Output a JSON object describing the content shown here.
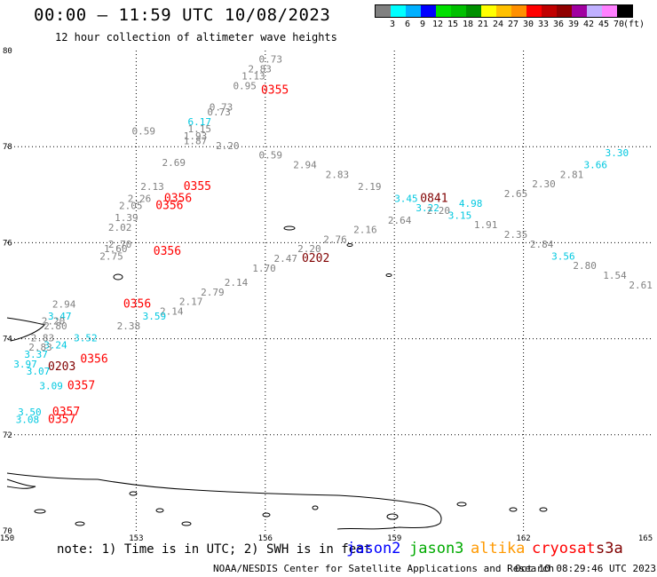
{
  "header": {
    "title": "00:00 – 11:59 UTC 10/08/2023",
    "subtitle": "12 hour collection of altimeter wave heights"
  },
  "legend": {
    "colors": [
      "#808080",
      "#00ffff",
      "#00b0ff",
      "#0000ff",
      "#00e000",
      "#00c000",
      "#009000",
      "#ffff00",
      "#ffc000",
      "#ff9000",
      "#ff0000",
      "#c00000",
      "#900000",
      "#a000a0",
      "#c0b0ff",
      "#ff80ff",
      "#000000"
    ],
    "labels": [
      "3",
      "6",
      "9",
      "12",
      "15",
      "18",
      "21",
      "24",
      "27",
      "30",
      "33",
      "36",
      "39",
      "42",
      "45",
      "70",
      "(ft)"
    ]
  },
  "map": {
    "x_ticks": [
      "150",
      "153",
      "156",
      "159",
      "162",
      "165"
    ],
    "y_ticks": [
      "80",
      "78",
      "76",
      "74",
      "72",
      "70"
    ],
    "obs": [
      {
        "t": "0.73",
        "lon": 155.85,
        "lat": 79.75,
        "c": "#808080"
      },
      {
        "t": "2.83",
        "lon": 155.6,
        "lat": 79.55,
        "c": "#808080"
      },
      {
        "t": "1.13",
        "lon": 155.45,
        "lat": 79.4,
        "c": "#808080"
      },
      {
        "t": "0.95",
        "lon": 155.25,
        "lat": 79.2,
        "c": "#808080"
      },
      {
        "t": "0.73",
        "lon": 154.7,
        "lat": 78.75,
        "c": "#808080"
      },
      {
        "t": "0.73",
        "lon": 154.65,
        "lat": 78.65,
        "c": "#808080"
      },
      {
        "t": "6.17",
        "lon": 154.2,
        "lat": 78.45,
        "c": "#00c8e0"
      },
      {
        "t": "1.15",
        "lon": 154.2,
        "lat": 78.3,
        "c": "#808080"
      },
      {
        "t": "0.59",
        "lon": 152.9,
        "lat": 78.25,
        "c": "#808080"
      },
      {
        "t": "1.93",
        "lon": 154.1,
        "lat": 78.15,
        "c": "#808080"
      },
      {
        "t": "1.87",
        "lon": 154.1,
        "lat": 78.05,
        "c": "#808080"
      },
      {
        "t": "2.20",
        "lon": 154.85,
        "lat": 77.95,
        "c": "#808080"
      },
      {
        "t": "0.59",
        "lon": 155.85,
        "lat": 77.75,
        "c": "#808080"
      },
      {
        "t": "2.69",
        "lon": 153.6,
        "lat": 77.6,
        "c": "#808080"
      },
      {
        "t": "2.94",
        "lon": 156.65,
        "lat": 77.55,
        "c": "#808080"
      },
      {
        "t": "2.83",
        "lon": 157.4,
        "lat": 77.35,
        "c": "#808080"
      },
      {
        "t": "2.13",
        "lon": 153.1,
        "lat": 77.1,
        "c": "#808080"
      },
      {
        "t": "2.19",
        "lon": 158.15,
        "lat": 77.1,
        "c": "#808080"
      },
      {
        "t": "3.30",
        "lon": 163.9,
        "lat": 77.8,
        "c": "#00c8e0"
      },
      {
        "t": "3.66",
        "lon": 163.4,
        "lat": 77.55,
        "c": "#00c8e0"
      },
      {
        "t": "2.81",
        "lon": 162.85,
        "lat": 77.35,
        "c": "#808080"
      },
      {
        "t": "2.30",
        "lon": 162.2,
        "lat": 77.15,
        "c": "#808080"
      },
      {
        "t": "2.65",
        "lon": 161.55,
        "lat": 76.95,
        "c": "#808080"
      },
      {
        "t": "3.45",
        "lon": 159.0,
        "lat": 76.85,
        "c": "#00c8e0"
      },
      {
        "t": "0841",
        "lon": 159.6,
        "lat": 76.85,
        "c": "#800000"
      },
      {
        "t": "4.98",
        "lon": 160.5,
        "lat": 76.75,
        "c": "#00c8e0"
      },
      {
        "t": "3.22",
        "lon": 159.5,
        "lat": 76.65,
        "c": "#00c8e0"
      },
      {
        "t": "2.20",
        "lon": 159.75,
        "lat": 76.6,
        "c": "#808080"
      },
      {
        "t": "3.15",
        "lon": 160.25,
        "lat": 76.5,
        "c": "#00c8e0"
      },
      {
        "t": "2.64",
        "lon": 158.85,
        "lat": 76.4,
        "c": "#808080"
      },
      {
        "t": "1.91",
        "lon": 160.85,
        "lat": 76.3,
        "c": "#808080"
      },
      {
        "t": "2.16",
        "lon": 158.05,
        "lat": 76.2,
        "c": "#808080"
      },
      {
        "t": "2.35",
        "lon": 161.55,
        "lat": 76.1,
        "c": "#808080"
      },
      {
        "t": "2.76",
        "lon": 157.35,
        "lat": 76.0,
        "c": "#808080"
      },
      {
        "t": "2.84",
        "lon": 162.15,
        "lat": 75.9,
        "c": "#808080"
      },
      {
        "t": "3.56",
        "lon": 162.65,
        "lat": 75.65,
        "c": "#00c8e0"
      },
      {
        "t": "2.20",
        "lon": 156.75,
        "lat": 75.8,
        "c": "#808080"
      },
      {
        "t": "0202",
        "lon": 156.85,
        "lat": 75.6,
        "c": "#800000"
      },
      {
        "t": "2.47",
        "lon": 156.2,
        "lat": 75.6,
        "c": "#808080"
      },
      {
        "t": "2.80",
        "lon": 163.15,
        "lat": 75.45,
        "c": "#808080"
      },
      {
        "t": "1.70",
        "lon": 155.7,
        "lat": 75.4,
        "c": "#808080"
      },
      {
        "t": "1.54",
        "lon": 163.85,
        "lat": 75.25,
        "c": "#808080"
      },
      {
        "t": "2.61",
        "lon": 164.45,
        "lat": 75.05,
        "c": "#808080"
      },
      {
        "t": "2.14",
        "lon": 155.05,
        "lat": 75.1,
        "c": "#808080"
      },
      {
        "t": "2.79",
        "lon": 154.5,
        "lat": 74.9,
        "c": "#808080"
      },
      {
        "t": "2.17",
        "lon": 154.0,
        "lat": 74.7,
        "c": "#808080"
      },
      {
        "t": "2.14",
        "lon": 153.55,
        "lat": 74.5,
        "c": "#808080"
      },
      {
        "t": "0355",
        "lon": 155.9,
        "lat": 79.1,
        "c": "#ff0000"
      },
      {
        "t": "0355",
        "lon": 154.1,
        "lat": 77.1,
        "c": "#ff0000"
      },
      {
        "t": "2.26",
        "lon": 152.8,
        "lat": 76.85,
        "c": "#808080"
      },
      {
        "t": "0356",
        "lon": 153.65,
        "lat": 76.85,
        "c": "#ff0000"
      },
      {
        "t": "2.05",
        "lon": 152.6,
        "lat": 76.7,
        "c": "#808080"
      },
      {
        "t": "0356",
        "lon": 153.45,
        "lat": 76.7,
        "c": "#ff0000"
      },
      {
        "t": "1.39",
        "lon": 152.5,
        "lat": 76.45,
        "c": "#808080"
      },
      {
        "t": "2.02",
        "lon": 152.35,
        "lat": 76.25,
        "c": "#808080"
      },
      {
        "t": "2.70",
        "lon": 152.35,
        "lat": 75.9,
        "c": "#808080"
      },
      {
        "t": "1.60",
        "lon": 152.25,
        "lat": 75.8,
        "c": "#808080"
      },
      {
        "t": "2.75",
        "lon": 152.15,
        "lat": 75.65,
        "c": "#808080"
      },
      {
        "t": "0356",
        "lon": 153.4,
        "lat": 75.75,
        "c": "#ff0000"
      },
      {
        "t": "2.94",
        "lon": 151.05,
        "lat": 74.65,
        "c": "#808080"
      },
      {
        "t": "0356",
        "lon": 152.7,
        "lat": 74.65,
        "c": "#ff0000"
      },
      {
        "t": "3.47",
        "lon": 150.95,
        "lat": 74.4,
        "c": "#00c8e0"
      },
      {
        "t": "2.20",
        "lon": 150.8,
        "lat": 74.3,
        "c": "#808080"
      },
      {
        "t": "2.80",
        "lon": 150.85,
        "lat": 74.2,
        "c": "#808080"
      },
      {
        "t": "3.59",
        "lon": 153.15,
        "lat": 74.4,
        "c": "#00c8e0"
      },
      {
        "t": "2.38",
        "lon": 152.55,
        "lat": 74.2,
        "c": "#808080"
      },
      {
        "t": "2.83",
        "lon": 150.55,
        "lat": 73.95,
        "c": "#808080"
      },
      {
        "t": "3.52",
        "lon": 151.55,
        "lat": 73.95,
        "c": "#00c8e0"
      },
      {
        "t": "3.24",
        "lon": 150.85,
        "lat": 73.8,
        "c": "#00c8e0"
      },
      {
        "t": "2.83",
        "lon": 150.5,
        "lat": 73.75,
        "c": "#808080"
      },
      {
        "t": "3.37",
        "lon": 150.4,
        "lat": 73.6,
        "c": "#00c8e0"
      },
      {
        "t": "0356",
        "lon": 151.7,
        "lat": 73.5,
        "c": "#ff0000"
      },
      {
        "t": "3.97",
        "lon": 150.15,
        "lat": 73.4,
        "c": "#00c8e0"
      },
      {
        "t": "0203",
        "lon": 150.95,
        "lat": 73.35,
        "c": "#800000"
      },
      {
        "t": "3.07",
        "lon": 150.45,
        "lat": 73.25,
        "c": "#00c8e0"
      },
      {
        "t": "3.09",
        "lon": 150.75,
        "lat": 72.95,
        "c": "#00c8e0"
      },
      {
        "t": "0357",
        "lon": 151.4,
        "lat": 72.95,
        "c": "#ff0000"
      },
      {
        "t": "3.50",
        "lon": 150.25,
        "lat": 72.4,
        "c": "#00c8e0"
      },
      {
        "t": "0357",
        "lon": 151.05,
        "lat": 72.4,
        "c": "#ff0000"
      },
      {
        "t": "3.08",
        "lon": 150.2,
        "lat": 72.25,
        "c": "#00c8e0"
      },
      {
        "t": "0357",
        "lon": 150.95,
        "lat": 72.25,
        "c": "#ff0000"
      }
    ]
  },
  "footer": {
    "note": "note: 1) Time is in UTC; 2) SWH is in feet",
    "satellites": [
      {
        "name": "jason2",
        "color": "#0000ff"
      },
      {
        "name": "jason3",
        "color": "#00aa00"
      },
      {
        "name": "altika",
        "color": "#ff9900"
      },
      {
        "name": "cryosat",
        "color": "#ff0000"
      },
      {
        "name": "s3a",
        "color": "#800000"
      }
    ],
    "credit": "NOAA/NESDIS Center for Satellite Applications and Research",
    "timestamp": "Oct 10 08:29:46 UTC 2023"
  }
}
